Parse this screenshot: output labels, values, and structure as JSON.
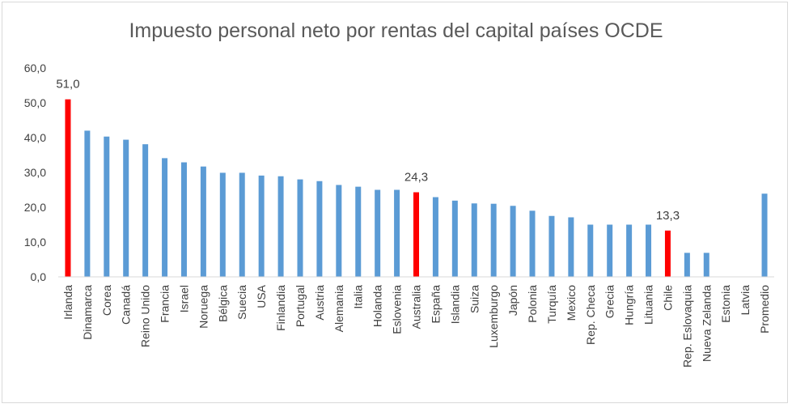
{
  "chart_data": {
    "type": "bar",
    "title": "Impuesto personal neto por rentas del capital países OCDE",
    "categories": [
      "Irlanda",
      "Dinamarca",
      "Corea",
      "Canadá",
      "Reino Unido",
      "Francia",
      "Israel",
      "Noruega",
      "Bélgica",
      "Suecia",
      "USA",
      "Finlandia",
      "Portugal",
      "Austria",
      "Alemania",
      "Italia",
      "Holanda",
      "Eslovenia",
      "Australia",
      "España",
      "Islandia",
      "Suiza",
      "Luxemburgo",
      "Japón",
      "Polonia",
      "Turquía",
      "Mexico",
      "Rep. Checa",
      "Grecia",
      "Hungría",
      "Lituania",
      "Chile",
      "Rep. Eslovaquia",
      "Nueva Zelanda",
      "Estonia",
      "Latvia",
      "Promedio"
    ],
    "values": [
      51.0,
      42.0,
      40.3,
      39.4,
      38.1,
      34.1,
      32.9,
      31.7,
      29.9,
      29.9,
      29.1,
      28.9,
      28.0,
      27.5,
      26.4,
      25.9,
      25.0,
      25.0,
      24.3,
      22.9,
      21.9,
      21.1,
      21.0,
      20.4,
      19.0,
      17.5,
      17.1,
      15.0,
      15.0,
      15.0,
      15.0,
      13.3,
      6.9,
      6.9,
      0,
      0,
      23.9
    ],
    "highlight": [
      "Irlanda",
      "Australia",
      "Chile"
    ],
    "data_labels": [
      {
        "category": "Irlanda",
        "text": "51,0"
      },
      {
        "category": "Australia",
        "text": "24,3"
      },
      {
        "category": "Chile",
        "text": "13,3"
      }
    ],
    "ylim": [
      0,
      60
    ],
    "yticks": [
      "0,0",
      "10,0",
      "20,0",
      "30,0",
      "40,0",
      "50,0",
      "60,0"
    ],
    "xlabel": "",
    "ylabel": "",
    "grid": false,
    "legend": "none",
    "colors": {
      "bar": "#5b9bd5",
      "highlight": "#ff0000",
      "axis": "#d9d9d9"
    }
  }
}
